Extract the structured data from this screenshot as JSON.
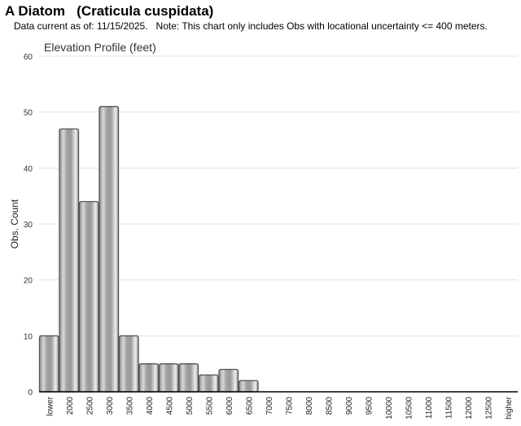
{
  "header": {
    "title": "A Diatom   (Craticula cuspidata)",
    "subtitle": "Data current as of: 11/15/2025.   Note: This chart only includes Obs with locational uncertainty <= 400 meters."
  },
  "chart_data": {
    "type": "bar",
    "title": "Elevation Profile (feet)",
    "xlabel": "",
    "ylabel": "Obs. Count",
    "ylim": [
      0,
      60
    ],
    "yticks": [
      0,
      10,
      20,
      30,
      40,
      50,
      60
    ],
    "grid": true,
    "categories": [
      "lower",
      "2000",
      "2500",
      "3000",
      "3500",
      "4000",
      "4500",
      "5000",
      "5500",
      "6000",
      "6500",
      "7000",
      "7500",
      "8000",
      "8500",
      "9000",
      "9500",
      "10000",
      "10500",
      "11000",
      "11500",
      "12000",
      "12500",
      "higher"
    ],
    "values": [
      10,
      47,
      34,
      51,
      10,
      5,
      5,
      5,
      3,
      4,
      2,
      0,
      0,
      0,
      0,
      0,
      0,
      0,
      0,
      0,
      0,
      0,
      0,
      0
    ],
    "colors": {
      "bar_stroke": "#555555",
      "bar_fill": "#b0b0b0",
      "grid": "#e0e0e0"
    }
  }
}
